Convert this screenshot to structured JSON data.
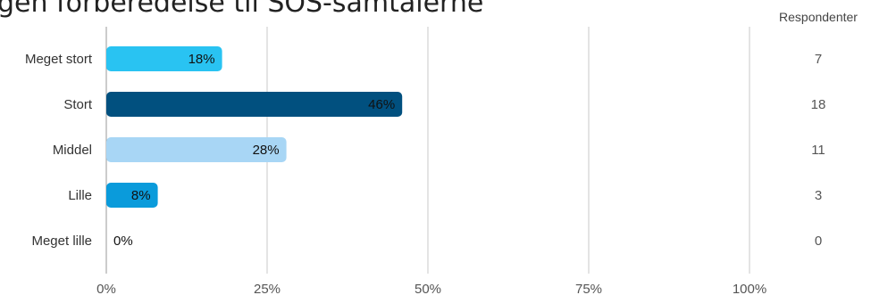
{
  "chart_data": {
    "type": "bar",
    "orientation": "horizontal",
    "title": "gen forberedelse til SOS-samtalerne",
    "categories": [
      "Meget stort",
      "Stort",
      "Middel",
      "Lille",
      "Meget lille"
    ],
    "values": [
      18,
      46,
      28,
      8,
      0
    ],
    "value_labels": [
      "18%",
      "46%",
      "28%",
      "8%",
      "0%"
    ],
    "colors": [
      "#29c3f2",
      "#01507f",
      "#a8d6f5",
      "#0a9bdb",
      "#29c3f2"
    ],
    "xlim": [
      0,
      100
    ],
    "x_ticks": [
      "0%",
      "25%",
      "50%",
      "75%",
      "100%"
    ],
    "grid": true,
    "respondents_header": "Respondenter",
    "respondents": [
      "7",
      "18",
      "11",
      "3",
      "0"
    ]
  }
}
